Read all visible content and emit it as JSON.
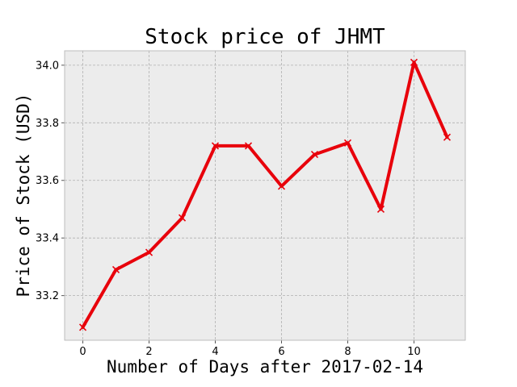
{
  "chart_data": {
    "type": "line",
    "title": "Stock price of JHMT",
    "xlabel": "Number of Days after 2017-02-14",
    "ylabel": "Price of Stock (USD)",
    "x": [
      0,
      1,
      2,
      3,
      4,
      5,
      6,
      7,
      8,
      9,
      10,
      11
    ],
    "series": [
      {
        "values": [
          33.09,
          33.29,
          33.35,
          33.47,
          33.72,
          33.72,
          33.58,
          33.69,
          33.73,
          33.5,
          34.01,
          33.75
        ]
      }
    ],
    "xlim": [
      -0.55,
      11.55
    ],
    "ylim": [
      33.045,
      34.05
    ],
    "xticks": [
      0,
      2,
      4,
      6,
      8,
      10
    ],
    "xtick_labels": [
      "0",
      "2",
      "4",
      "6",
      "8",
      "10"
    ],
    "yticks": [
      33.2,
      33.4,
      33.6,
      33.8,
      34.0
    ],
    "ytick_labels": [
      "33.2",
      "33.4",
      "33.6",
      "33.8",
      "34.0"
    ],
    "grid": true,
    "marker": "x",
    "colors": {
      "line": "#e8000b",
      "plot_bg": "#ececec",
      "grid": "#b0b0b0",
      "spine": "#bcbcbc"
    }
  }
}
